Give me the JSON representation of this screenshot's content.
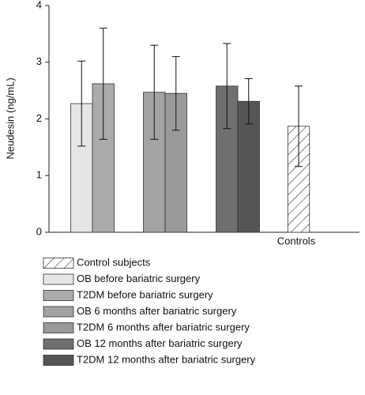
{
  "chart_data": {
    "type": "bar",
    "y_label": "Neudesin (ng/mL)",
    "categories": [
      null,
      null,
      null,
      "Controls"
    ],
    "ylim": [
      0,
      4
    ],
    "yticks": [
      0,
      1,
      2,
      3,
      4
    ],
    "series": [
      {
        "name": "Control subjects",
        "color": "#ffffff",
        "hatch": true,
        "values": [
          null,
          null,
          null,
          1.87
        ],
        "errors": [
          null,
          null,
          null,
          0.71
        ]
      },
      {
        "name": "OB before bariatric surgery",
        "color": "#e6e6e6",
        "values": [
          2.27,
          null,
          null,
          null
        ],
        "errors": [
          0.75,
          null,
          null,
          null
        ]
      },
      {
        "name": "T2DM before bariatric surgery",
        "color": "#ababab",
        "values": [
          2.62,
          null,
          null,
          null
        ],
        "errors": [
          0.98,
          null,
          null,
          null
        ]
      },
      {
        "name": "OB 6 months after bariatric surgery",
        "color": "#a3a3a3",
        "values": [
          null,
          2.47,
          null,
          null
        ],
        "errors": [
          null,
          0.83,
          null,
          null
        ]
      },
      {
        "name": "T2DM 6 months after bariatric surgery",
        "color": "#9a9a9a",
        "values": [
          null,
          2.45,
          null,
          null
        ],
        "errors": [
          null,
          0.65,
          null,
          null
        ]
      },
      {
        "name": "OB 12 months after bariatric surgery",
        "color": "#6f6f6f",
        "values": [
          null,
          null,
          2.58,
          null
        ],
        "errors": [
          null,
          null,
          0.75,
          null
        ]
      },
      {
        "name": "T2DM 12 months after bariatric surgery",
        "color": "#555555",
        "values": [
          null,
          null,
          2.31,
          null
        ],
        "errors": [
          null,
          null,
          0.4,
          null
        ]
      }
    ]
  }
}
